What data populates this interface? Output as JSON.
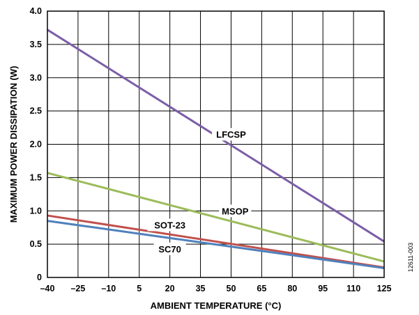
{
  "figure_id": "12611-003",
  "chart_data": {
    "type": "line",
    "title": "",
    "xlabel": "AMBIENT TEMPERATURE (°C)",
    "ylabel": "MAXIMUM POWER DISSIPATION (W)",
    "xlim": [
      -40,
      125
    ],
    "ylim": [
      0,
      4.0
    ],
    "x_ticks": [
      -40,
      -25,
      -10,
      5,
      20,
      35,
      50,
      65,
      80,
      95,
      110,
      125
    ],
    "x_tick_labels": [
      "–40",
      "–25",
      "–10",
      "5",
      "20",
      "35",
      "50",
      "65",
      "80",
      "95",
      "110",
      "125"
    ],
    "y_ticks": [
      0,
      0.5,
      1.0,
      1.5,
      2.0,
      2.5,
      3.0,
      3.5,
      4.0
    ],
    "y_tick_labels": [
      "0",
      "0.5",
      "1.0",
      "1.5",
      "2.0",
      "2.5",
      "3.0",
      "3.5",
      "4.0"
    ],
    "grid": true,
    "legend": "inline-labels",
    "series": [
      {
        "name": "LFCSP",
        "color": "#7b5ea7",
        "points": [
          [
            -40,
            3.72
          ],
          [
            125,
            0.54
          ]
        ],
        "label_anchor": [
          50,
          2.15
        ]
      },
      {
        "name": "MSOP",
        "color": "#9bbb59",
        "points": [
          [
            -40,
            1.57
          ],
          [
            125,
            0.24
          ]
        ],
        "label_anchor": [
          52,
          1.0
        ]
      },
      {
        "name": "SOT-23",
        "color": "#c0504d",
        "points": [
          [
            -40,
            0.93
          ],
          [
            125,
            0.15
          ]
        ],
        "label_anchor": [
          20,
          0.79
        ]
      },
      {
        "name": "SC70",
        "color": "#4f81bd",
        "points": [
          [
            -40,
            0.85
          ],
          [
            125,
            0.14
          ]
        ],
        "label_anchor": [
          20,
          0.43
        ]
      }
    ]
  }
}
